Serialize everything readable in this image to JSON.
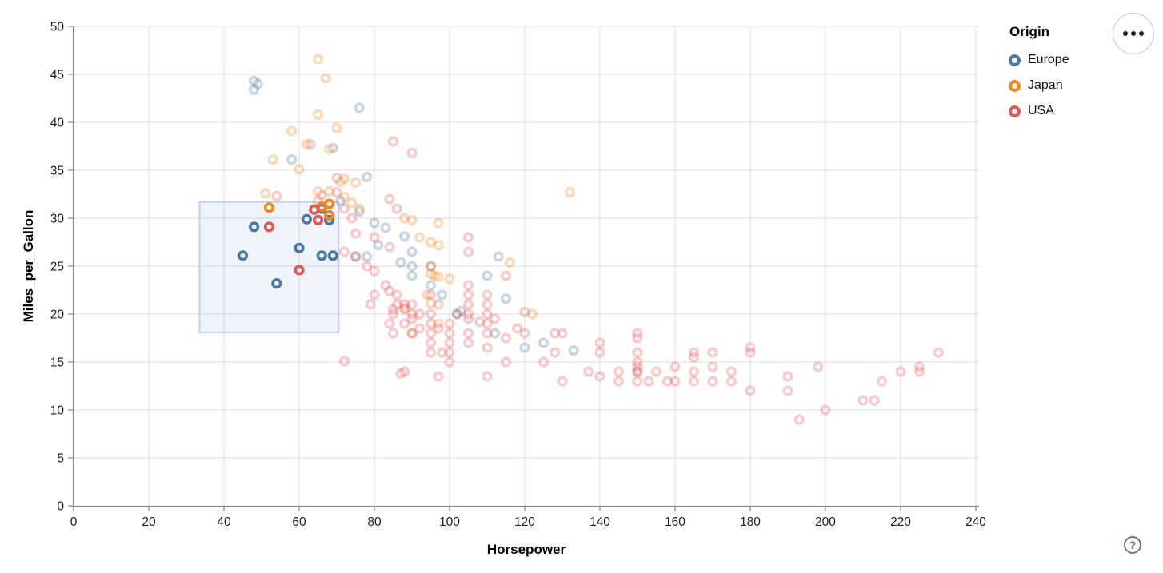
{
  "legend": {
    "title": "Origin",
    "items": [
      {
        "label": "Europe",
        "color": "#4c78a8"
      },
      {
        "label": "Japan",
        "color": "#f58518"
      },
      {
        "label": "USA",
        "color": "#e45756"
      }
    ]
  },
  "controls": {
    "menu_button": {
      "icon": "ellipsis-icon"
    },
    "help_button": {
      "glyph": "?"
    }
  },
  "chart_data": {
    "type": "scatter",
    "title": "",
    "xlabel": "Horsepower",
    "ylabel": "Miles_per_Gallon",
    "xlim": [
      0,
      240
    ],
    "ylim": [
      0,
      50
    ],
    "xticks": [
      0,
      20,
      40,
      60,
      80,
      100,
      120,
      140,
      160,
      180,
      200,
      220,
      240
    ],
    "yticks": [
      0,
      5,
      10,
      15,
      20,
      25,
      30,
      35,
      40,
      45,
      50
    ],
    "grid": true,
    "legend_position": "top-right",
    "brush": {
      "x": [
        33.5,
        70.5
      ],
      "y": [
        18.1,
        31.7
      ]
    },
    "style": {
      "grid_color": "#dddddd",
      "axis_color": "#888888",
      "label_color": "#1b1b1b",
      "brush_fill": "rgba(130,165,220,0.13)",
      "brush_stroke": "#bdd1ef",
      "point_radius": 4.8,
      "point_stroke_width": 3.6,
      "faded_opacity": 0.3
    },
    "series": [
      {
        "name": "Europe",
        "color": "#4c78a8",
        "selected": [
          [
            45,
            26.1
          ],
          [
            48,
            29.1
          ],
          [
            54,
            23.2
          ],
          [
            60,
            26.9
          ],
          [
            62,
            29.9
          ],
          [
            66,
            31.0
          ],
          [
            68,
            29.8
          ],
          [
            66,
            26.1
          ],
          [
            69,
            26.1
          ]
        ],
        "points": [
          [
            48,
            44.3
          ],
          [
            48,
            43.4
          ],
          [
            49,
            44.0
          ],
          [
            76,
            41.5
          ],
          [
            58,
            36.1
          ],
          [
            69,
            37.3
          ],
          [
            78,
            34.3
          ],
          [
            71,
            31.8
          ],
          [
            76,
            30.7
          ],
          [
            80,
            29.5
          ],
          [
            83,
            29.0
          ],
          [
            88,
            28.1
          ],
          [
            75,
            26.0
          ],
          [
            78,
            26.0
          ],
          [
            90,
            26.5
          ],
          [
            87,
            25.4
          ],
          [
            90,
            25.0
          ],
          [
            95,
            25.0
          ],
          [
            90,
            24.0
          ],
          [
            113,
            26.0
          ],
          [
            110,
            24.0
          ],
          [
            95,
            23.0
          ],
          [
            98,
            22.0
          ],
          [
            115,
            21.6
          ],
          [
            103,
            20.3
          ],
          [
            102,
            20.0
          ],
          [
            112,
            18.0
          ],
          [
            120,
            16.5
          ],
          [
            125,
            17.0
          ],
          [
            133,
            16.2
          ],
          [
            81,
            27.2
          ]
        ]
      },
      {
        "name": "Japan",
        "color": "#f58518",
        "selected": [
          [
            52,
            31.1
          ],
          [
            66,
            31.2
          ],
          [
            68,
            31.5
          ],
          [
            68,
            30.3
          ]
        ],
        "points": [
          [
            65,
            46.6
          ],
          [
            67,
            44.6
          ],
          [
            65,
            40.8
          ],
          [
            70,
            39.4
          ],
          [
            58,
            39.1
          ],
          [
            62,
            37.7
          ],
          [
            68,
            37.2
          ],
          [
            53,
            36.1
          ],
          [
            60,
            35.1
          ],
          [
            72,
            34.1
          ],
          [
            71,
            33.8
          ],
          [
            75,
            33.7
          ],
          [
            51,
            32.6
          ],
          [
            65,
            32.8
          ],
          [
            68,
            32.8
          ],
          [
            132,
            32.7
          ],
          [
            72,
            32.2
          ],
          [
            65,
            31.8
          ],
          [
            74,
            31.6
          ],
          [
            76,
            31.0
          ],
          [
            88,
            30.0
          ],
          [
            90,
            29.8
          ],
          [
            97,
            29.5
          ],
          [
            92,
            28.0
          ],
          [
            95,
            27.5
          ],
          [
            97,
            27.2
          ],
          [
            116,
            25.4
          ],
          [
            95,
            25.0
          ],
          [
            95,
            24.2
          ],
          [
            96,
            24.0
          ],
          [
            97,
            23.9
          ],
          [
            100,
            23.7
          ],
          [
            94,
            22.0
          ],
          [
            95,
            21.1
          ],
          [
            122,
            20.0
          ],
          [
            88,
            20.5
          ],
          [
            97,
            19.0
          ],
          [
            90,
            18.0
          ]
        ]
      },
      {
        "name": "USA",
        "color": "#e45756",
        "selected": [
          [
            52,
            29.1
          ],
          [
            60,
            24.6
          ],
          [
            64,
            30.9
          ],
          [
            65,
            29.8
          ]
        ],
        "points": [
          [
            63,
            37.7
          ],
          [
            70,
            34.2
          ],
          [
            85,
            38.0
          ],
          [
            90,
            36.8
          ],
          [
            84,
            32.0
          ],
          [
            86,
            31.0
          ],
          [
            54,
            32.3
          ],
          [
            66,
            32.4
          ],
          [
            70,
            32.7
          ],
          [
            72,
            31.0
          ],
          [
            74,
            30.0
          ],
          [
            75,
            28.4
          ],
          [
            80,
            28.0
          ],
          [
            84,
            27.0
          ],
          [
            72,
            26.5
          ],
          [
            75,
            26.0
          ],
          [
            78,
            25.0
          ],
          [
            80,
            24.5
          ],
          [
            83,
            23.0
          ],
          [
            80,
            22.0
          ],
          [
            84,
            22.4
          ],
          [
            86,
            22.0
          ],
          [
            79,
            21.0
          ],
          [
            72,
            15.1
          ],
          [
            84,
            19
          ],
          [
            85,
            18
          ],
          [
            85,
            20
          ],
          [
            85,
            20.5
          ],
          [
            86,
            21
          ],
          [
            88,
            19
          ],
          [
            88,
            20.6
          ],
          [
            88,
            21
          ],
          [
            90,
            18
          ],
          [
            90,
            19.5
          ],
          [
            90,
            20
          ],
          [
            90,
            21
          ],
          [
            92,
            20
          ],
          [
            92,
            18.5
          ],
          [
            88,
            14
          ],
          [
            87,
            13.8
          ],
          [
            95,
            16
          ],
          [
            95,
            17
          ],
          [
            95,
            18
          ],
          [
            95,
            19
          ],
          [
            95,
            20
          ],
          [
            95,
            22
          ],
          [
            97,
            18.5
          ],
          [
            97,
            21
          ],
          [
            98,
            16
          ],
          [
            97,
            13.5
          ],
          [
            100,
            15
          ],
          [
            100,
            16
          ],
          [
            100,
            17
          ],
          [
            100,
            18
          ],
          [
            100,
            19
          ],
          [
            102,
            20
          ],
          [
            105,
            17
          ],
          [
            105,
            18
          ],
          [
            105,
            19.5
          ],
          [
            105,
            20
          ],
          [
            105,
            21
          ],
          [
            105,
            22
          ],
          [
            105,
            23
          ],
          [
            105,
            26.5
          ],
          [
            105,
            28
          ],
          [
            108,
            19.2
          ],
          [
            110,
            13.5
          ],
          [
            110,
            16.5
          ],
          [
            110,
            18
          ],
          [
            110,
            19
          ],
          [
            110,
            20
          ],
          [
            110,
            21
          ],
          [
            110,
            22
          ],
          [
            112,
            19.5
          ],
          [
            115,
            15
          ],
          [
            115,
            17.5
          ],
          [
            115,
            24
          ],
          [
            118,
            18.5
          ],
          [
            120,
            18
          ],
          [
            120,
            20.2
          ],
          [
            125,
            15
          ],
          [
            128,
            16
          ],
          [
            128,
            18
          ],
          [
            130,
            13
          ],
          [
            130,
            18
          ],
          [
            137,
            14
          ],
          [
            140,
            13.5
          ],
          [
            140,
            16
          ],
          [
            140,
            17
          ],
          [
            145,
            13
          ],
          [
            145,
            14
          ],
          [
            150,
            13
          ],
          [
            150,
            14
          ],
          [
            150,
            14
          ],
          [
            150,
            14.5
          ],
          [
            150,
            15
          ],
          [
            150,
            16
          ],
          [
            150,
            17.5
          ],
          [
            150,
            18
          ],
          [
            153,
            13
          ],
          [
            155,
            14
          ],
          [
            158,
            13
          ],
          [
            160,
            13
          ],
          [
            160,
            14.5
          ],
          [
            165,
            13
          ],
          [
            165,
            14
          ],
          [
            165,
            15.5
          ],
          [
            165,
            16
          ],
          [
            170,
            13
          ],
          [
            170,
            14.5
          ],
          [
            170,
            16
          ],
          [
            175,
            13
          ],
          [
            175,
            14
          ],
          [
            180,
            12
          ],
          [
            180,
            16
          ],
          [
            180,
            16.5
          ],
          [
            190,
            12
          ],
          [
            190,
            13.5
          ],
          [
            193,
            9
          ],
          [
            198,
            14.5
          ],
          [
            200,
            10
          ],
          [
            210,
            11
          ],
          [
            213,
            11
          ],
          [
            215,
            13
          ],
          [
            220,
            14
          ],
          [
            225,
            14
          ],
          [
            225,
            14.5
          ],
          [
            230,
            16
          ]
        ]
      }
    ]
  }
}
